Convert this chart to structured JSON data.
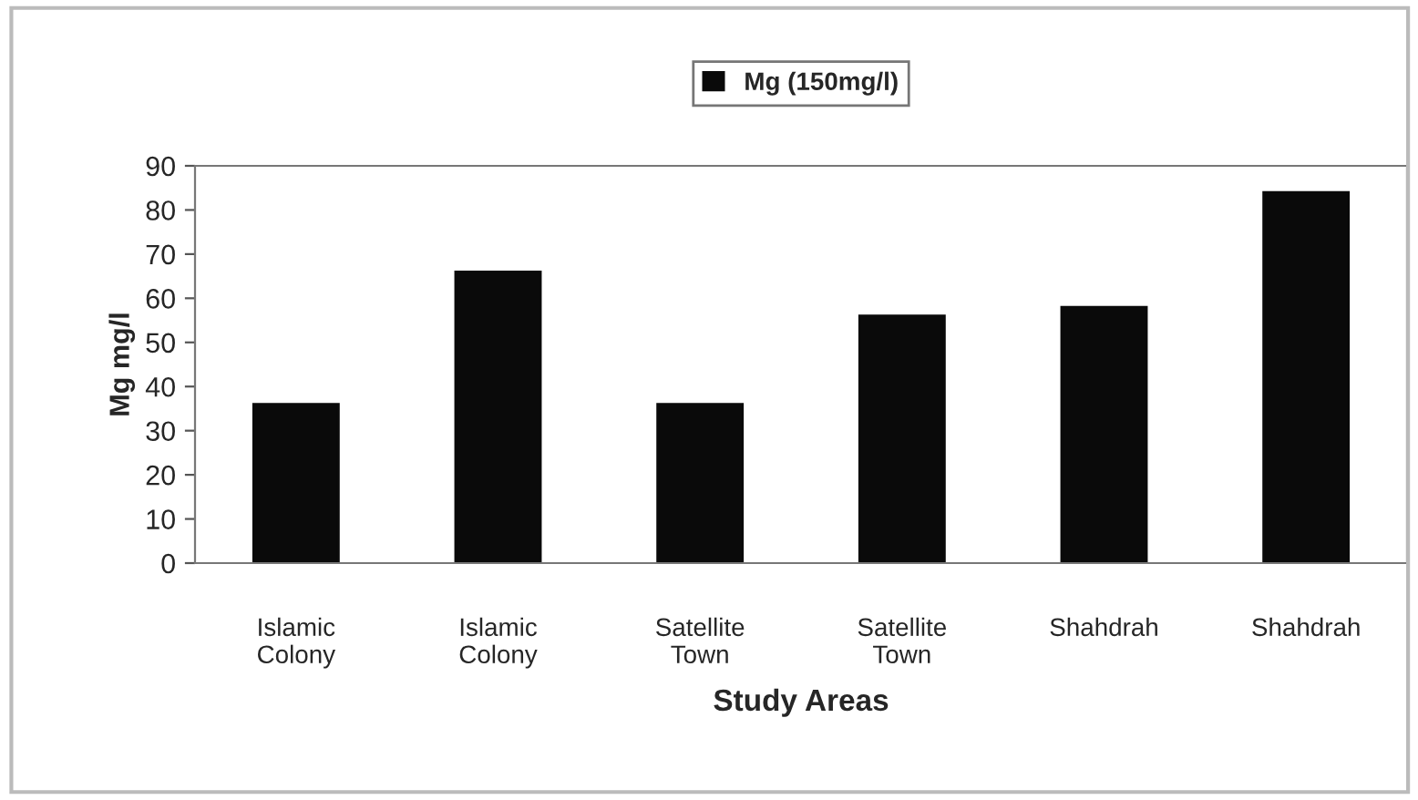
{
  "chart_data": {
    "type": "bar",
    "xlabel": "Study Areas",
    "ylabel": "Mg mg/l",
    "categories": [
      "Islamic\nColony",
      "Islamic\nColony",
      "Satellite\nTown",
      "Satellite\nTown",
      "Shahdrah",
      "Shahdrah"
    ],
    "series": [
      {
        "name": "Mg (150mg/l)",
        "color": "#0a0a0a",
        "values": [
          36,
          66,
          36,
          56,
          58,
          84
        ]
      }
    ],
    "ylim": [
      0,
      90
    ],
    "yticks": [
      0,
      10,
      20,
      30,
      40,
      50,
      60,
      70,
      80,
      90
    ],
    "grid": false,
    "legend": "top"
  }
}
